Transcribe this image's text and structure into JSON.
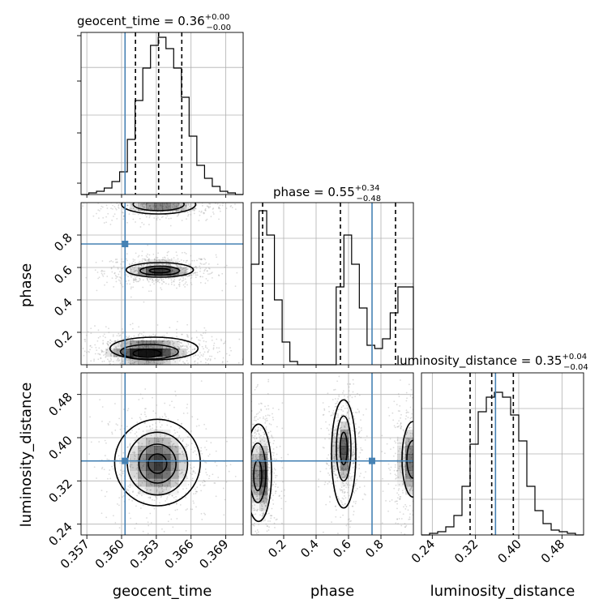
{
  "chart_data": {
    "type": "corner",
    "parameters": [
      {
        "name": "geocent_time",
        "range": [
          0.3565,
          0.3705
        ],
        "ticks": [
          "0.357",
          "0.360",
          "0.363",
          "0.366",
          "0.369"
        ],
        "truth": 0.3603,
        "quantiles": [
          0.3612,
          0.3632,
          0.3652
        ],
        "title": {
          "base": "geocent_time = 0.36",
          "plus": "+0.00",
          "minus": "−0.00"
        }
      },
      {
        "name": "phase",
        "range": [
          0.0,
          1.0
        ],
        "ticks": [
          "0.2",
          "0.4",
          "0.6",
          "0.8"
        ],
        "truth": 0.745,
        "quantiles": [
          0.07,
          0.55,
          0.89
        ],
        "title": {
          "base": "phase = 0.55",
          "plus": "+0.34",
          "minus": "−0.48"
        }
      },
      {
        "name": "luminosity_distance",
        "range": [
          0.22,
          0.52
        ],
        "ticks": [
          "0.24",
          "0.32",
          "0.40",
          "0.48"
        ],
        "truth": 0.357,
        "quantiles": [
          0.31,
          0.35,
          0.39
        ],
        "title": {
          "base": "luminosity_distance = 0.35",
          "plus": "+0.04",
          "minus": "−0.04"
        }
      }
    ],
    "hist1d": [
      [
        0.0,
        0.01,
        0.02,
        0.04,
        0.08,
        0.14,
        0.34,
        0.58,
        0.78,
        0.92,
        0.97,
        0.9,
        0.78,
        0.6,
        0.36,
        0.18,
        0.1,
        0.05,
        0.02,
        0.01,
        0.0
      ],
      [
        0.62,
        0.95,
        0.8,
        0.4,
        0.14,
        0.02,
        0.0,
        0.0,
        0.0,
        0.0,
        0.0,
        0.48,
        0.8,
        0.62,
        0.35,
        0.12,
        0.1,
        0.16,
        0.32,
        0.48,
        0.48
      ],
      [
        0.0,
        0.01,
        0.02,
        0.05,
        0.12,
        0.3,
        0.56,
        0.76,
        0.85,
        0.88,
        0.85,
        0.74,
        0.58,
        0.3,
        0.15,
        0.07,
        0.03,
        0.02,
        0.01,
        0.0
      ]
    ],
    "blobs": {
      "time_phase": [
        {
          "cx": 0.3633,
          "cy": 0.58,
          "sx": 0.0015,
          "sy": 0.03,
          "w": 1.0
        },
        {
          "cx": 0.3622,
          "cy": 0.08,
          "sx": 0.0019,
          "sy": 0.04,
          "w": 1.3
        },
        {
          "cx": 0.3634,
          "cy": 0.98,
          "sx": 0.0018,
          "sy": 0.03,
          "w": 0.7
        }
      ],
      "time_dist": [
        {
          "cx": 0.3631,
          "cy": 0.352,
          "sx": 0.0015,
          "sy": 0.035,
          "w": 1.0
        }
      ],
      "phase_dist": [
        {
          "cx": 0.06,
          "cy": 0.33,
          "sx": 0.035,
          "sy": 0.04,
          "w": 1.0
        },
        {
          "cx": 0.57,
          "cy": 0.375,
          "sx": 0.035,
          "sy": 0.035,
          "w": 0.9
        },
        {
          "cx": 0.98,
          "cy": 0.355,
          "sx": 0.045,
          "sy": 0.04,
          "w": 0.75
        }
      ]
    },
    "contours": {
      "time_phase": [
        [
          0.3633,
          0.58,
          0.0009,
          0.013
        ],
        [
          0.3633,
          0.58,
          0.0017,
          0.028
        ],
        [
          0.3633,
          0.585,
          0.0029,
          0.045
        ],
        [
          0.3622,
          0.07,
          0.0012,
          0.025
        ],
        [
          0.3624,
          0.08,
          0.0025,
          0.045
        ],
        [
          0.3628,
          0.1,
          0.0038,
          0.07
        ],
        [
          0.3632,
          0.99,
          0.0022,
          0.04
        ],
        [
          0.3632,
          0.99,
          0.0032,
          0.06
        ]
      ],
      "time_dist": [
        [
          0.3631,
          0.352,
          0.0008,
          0.018
        ],
        [
          0.3631,
          0.352,
          0.0016,
          0.036
        ],
        [
          0.3631,
          0.352,
          0.0026,
          0.058
        ],
        [
          0.3631,
          0.354,
          0.0037,
          0.08
        ]
      ],
      "phase_dist": [
        [
          0.04,
          0.33,
          0.025,
          0.028
        ],
        [
          0.04,
          0.335,
          0.05,
          0.055
        ],
        [
          0.045,
          0.335,
          0.08,
          0.09
        ],
        [
          0.57,
          0.38,
          0.022,
          0.03
        ],
        [
          0.57,
          0.38,
          0.045,
          0.06
        ],
        [
          0.57,
          0.37,
          0.075,
          0.1
        ],
        [
          1.0,
          0.36,
          0.04,
          0.035
        ],
        [
          1.0,
          0.36,
          0.07,
          0.07
        ]
      ]
    }
  }
}
